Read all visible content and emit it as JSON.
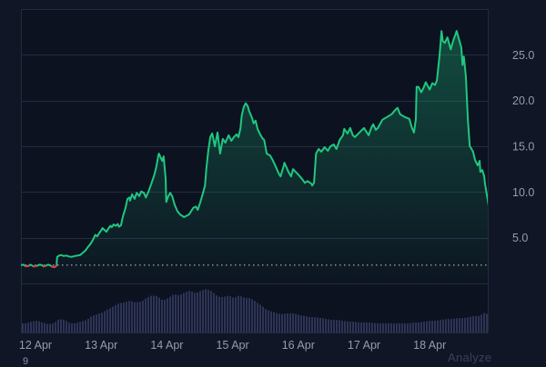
{
  "page": {
    "background": "#101626",
    "plot_background": "#0c1220",
    "grid_color": "#242b3e",
    "axis_text_color": "#939cb0"
  },
  "footer": {
    "analyze_label": "Analyze",
    "partial_glyph": "9"
  },
  "chart_data": {
    "type": "line",
    "title": "",
    "xlabel": "",
    "ylabel": "",
    "grid": true,
    "legend": false,
    "ylim": [
      0,
      30
    ],
    "xlim_days": [
      -0.22,
      6.9
    ],
    "y_ticks": [
      {
        "label": "25.0",
        "value": 25
      },
      {
        "label": "20.0",
        "value": 20
      },
      {
        "label": "15.0",
        "value": 15
      },
      {
        "label": "10.0",
        "value": 10
      },
      {
        "label": "5.0",
        "value": 5
      }
    ],
    "x_ticks": [
      {
        "label": "12 Apr",
        "day": 0
      },
      {
        "label": "13 Apr",
        "day": 1
      },
      {
        "label": "14 Apr",
        "day": 2
      },
      {
        "label": "15 Apr",
        "day": 3
      },
      {
        "label": "16 Apr",
        "day": 4
      },
      {
        "label": "17 Apr",
        "day": 5
      },
      {
        "label": "18 Apr",
        "day": 6
      }
    ],
    "baseline": {
      "value": 2.0,
      "style": "dotted",
      "color": "#e4eaf5"
    },
    "series": [
      {
        "name": "price",
        "type": "line",
        "color_above": "#20c780",
        "color_below": "#ea3943",
        "below_threshold": 1.96,
        "fill_gradient_top": "rgba(32,199,128,0.35)",
        "fill_gradient_bottom": "rgba(32,199,128,0.02)",
        "points": [
          [
            -0.22,
            2.0
          ],
          [
            -0.18,
            2.05
          ],
          [
            -0.15,
            1.88
          ],
          [
            -0.11,
            1.9
          ],
          [
            -0.08,
            2.05
          ],
          [
            -0.06,
            2.0
          ],
          [
            -0.03,
            1.86
          ],
          [
            0.01,
            1.9
          ],
          [
            0.06,
            2.05
          ],
          [
            0.1,
            2.0
          ],
          [
            0.12,
            1.87
          ],
          [
            0.15,
            1.9
          ],
          [
            0.19,
            2.05
          ],
          [
            0.22,
            2.0
          ],
          [
            0.25,
            1.85
          ],
          [
            0.28,
            1.78
          ],
          [
            0.3,
            1.82
          ],
          [
            0.32,
            1.95
          ],
          [
            0.33,
            2.9
          ],
          [
            0.36,
            3.05
          ],
          [
            0.39,
            3.1
          ],
          [
            0.43,
            3.0
          ],
          [
            0.47,
            3.05
          ],
          [
            0.51,
            2.95
          ],
          [
            0.55,
            2.9
          ],
          [
            0.6,
            3.0
          ],
          [
            0.64,
            3.05
          ],
          [
            0.68,
            3.1
          ],
          [
            0.72,
            3.35
          ],
          [
            0.76,
            3.6
          ],
          [
            0.8,
            4.0
          ],
          [
            0.84,
            4.35
          ],
          [
            0.87,
            4.7
          ],
          [
            0.91,
            5.3
          ],
          [
            0.94,
            5.15
          ],
          [
            0.97,
            5.5
          ],
          [
            1.0,
            5.8
          ],
          [
            1.02,
            6.05
          ],
          [
            1.05,
            5.85
          ],
          [
            1.08,
            5.65
          ],
          [
            1.11,
            6.0
          ],
          [
            1.14,
            6.3
          ],
          [
            1.16,
            6.15
          ],
          [
            1.19,
            6.45
          ],
          [
            1.22,
            6.3
          ],
          [
            1.25,
            6.5
          ],
          [
            1.27,
            6.2
          ],
          [
            1.3,
            6.35
          ],
          [
            1.33,
            7.3
          ],
          [
            1.37,
            8.25
          ],
          [
            1.4,
            9.25
          ],
          [
            1.43,
            9.4
          ],
          [
            1.44,
            9.05
          ],
          [
            1.47,
            9.75
          ],
          [
            1.51,
            9.25
          ],
          [
            1.54,
            9.9
          ],
          [
            1.58,
            9.55
          ],
          [
            1.61,
            10.05
          ],
          [
            1.65,
            9.9
          ],
          [
            1.68,
            9.4
          ],
          [
            1.72,
            10.05
          ],
          [
            1.77,
            11.05
          ],
          [
            1.81,
            11.9
          ],
          [
            1.84,
            12.75
          ],
          [
            1.87,
            14.0
          ],
          [
            1.88,
            14.2
          ],
          [
            1.91,
            13.7
          ],
          [
            1.93,
            13.4
          ],
          [
            1.95,
            13.9
          ],
          [
            1.98,
            11.5
          ],
          [
            1.99,
            8.9
          ],
          [
            2.02,
            9.5
          ],
          [
            2.05,
            9.9
          ],
          [
            2.08,
            9.55
          ],
          [
            2.12,
            8.55
          ],
          [
            2.16,
            7.9
          ],
          [
            2.2,
            7.55
          ],
          [
            2.26,
            7.25
          ],
          [
            2.3,
            7.4
          ],
          [
            2.34,
            7.55
          ],
          [
            2.4,
            8.25
          ],
          [
            2.44,
            8.4
          ],
          [
            2.47,
            8.05
          ],
          [
            2.51,
            8.9
          ],
          [
            2.55,
            9.9
          ],
          [
            2.58,
            10.7
          ],
          [
            2.6,
            12.5
          ],
          [
            2.63,
            14.5
          ],
          [
            2.66,
            16.0
          ],
          [
            2.69,
            16.4
          ],
          [
            2.73,
            15.0
          ],
          [
            2.77,
            16.5
          ],
          [
            2.81,
            14.2
          ],
          [
            2.85,
            15.8
          ],
          [
            2.89,
            15.4
          ],
          [
            2.94,
            16.2
          ],
          [
            2.98,
            15.6
          ],
          [
            3.02,
            16.0
          ],
          [
            3.06,
            16.3
          ],
          [
            3.09,
            16.0
          ],
          [
            3.12,
            17.0
          ],
          [
            3.14,
            18.4
          ],
          [
            3.17,
            19.3
          ],
          [
            3.2,
            19.7
          ],
          [
            3.23,
            19.4
          ],
          [
            3.25,
            18.9
          ],
          [
            3.3,
            18.0
          ],
          [
            3.32,
            17.5
          ],
          [
            3.35,
            17.8
          ],
          [
            3.38,
            16.9
          ],
          [
            3.42,
            16.3
          ],
          [
            3.45,
            15.9
          ],
          [
            3.48,
            15.7
          ],
          [
            3.52,
            14.2
          ],
          [
            3.57,
            14.0
          ],
          [
            3.61,
            13.5
          ],
          [
            3.66,
            12.7
          ],
          [
            3.71,
            11.9
          ],
          [
            3.73,
            11.7
          ],
          [
            3.78,
            12.9
          ],
          [
            3.79,
            13.2
          ],
          [
            3.85,
            12.2
          ],
          [
            3.89,
            11.7
          ],
          [
            3.92,
            12.5
          ],
          [
            3.96,
            12.2
          ],
          [
            4.0,
            11.9
          ],
          [
            4.06,
            11.4
          ],
          [
            4.1,
            11.0
          ],
          [
            4.14,
            11.2
          ],
          [
            4.2,
            10.9
          ],
          [
            4.21,
            10.7
          ],
          [
            4.24,
            11.0
          ],
          [
            4.27,
            14.2
          ],
          [
            4.31,
            14.7
          ],
          [
            4.35,
            14.4
          ],
          [
            4.4,
            14.9
          ],
          [
            4.45,
            14.5
          ],
          [
            4.49,
            15.0
          ],
          [
            4.54,
            15.2
          ],
          [
            4.58,
            14.7
          ],
          [
            4.63,
            15.7
          ],
          [
            4.68,
            16.2
          ],
          [
            4.7,
            16.9
          ],
          [
            4.75,
            16.4
          ],
          [
            4.79,
            17.0
          ],
          [
            4.83,
            16.2
          ],
          [
            4.86,
            16.0
          ],
          [
            4.93,
            16.5
          ],
          [
            5.0,
            17.0
          ],
          [
            5.07,
            16.2
          ],
          [
            5.11,
            17.0
          ],
          [
            5.14,
            17.4
          ],
          [
            5.18,
            16.8
          ],
          [
            5.21,
            17.0
          ],
          [
            5.25,
            17.5
          ],
          [
            5.28,
            17.9
          ],
          [
            5.35,
            18.2
          ],
          [
            5.42,
            18.5
          ],
          [
            5.48,
            19.0
          ],
          [
            5.51,
            19.2
          ],
          [
            5.55,
            18.5
          ],
          [
            5.62,
            18.2
          ],
          [
            5.69,
            18.0
          ],
          [
            5.73,
            17.0
          ],
          [
            5.76,
            16.5
          ],
          [
            5.79,
            18.0
          ],
          [
            5.8,
            21.5
          ],
          [
            5.83,
            21.5
          ],
          [
            5.87,
            20.9
          ],
          [
            5.9,
            21.3
          ],
          [
            5.94,
            22.0
          ],
          [
            5.97,
            21.6
          ],
          [
            6.0,
            21.2
          ],
          [
            6.04,
            21.9
          ],
          [
            6.08,
            21.7
          ],
          [
            6.11,
            22.2
          ],
          [
            6.15,
            24.9
          ],
          [
            6.18,
            27.6
          ],
          [
            6.2,
            26.5
          ],
          [
            6.23,
            26.3
          ],
          [
            6.27,
            26.9
          ],
          [
            6.32,
            25.6
          ],
          [
            6.36,
            26.6
          ],
          [
            6.39,
            27.2
          ],
          [
            6.41,
            27.6
          ],
          [
            6.45,
            26.6
          ],
          [
            6.48,
            25.8
          ],
          [
            6.5,
            23.9
          ],
          [
            6.52,
            24.8
          ],
          [
            6.55,
            22.7
          ],
          [
            6.58,
            18.0
          ],
          [
            6.61,
            15.0
          ],
          [
            6.62,
            14.9
          ],
          [
            6.66,
            14.4
          ],
          [
            6.69,
            13.5
          ],
          [
            6.73,
            12.9
          ],
          [
            6.76,
            13.4
          ],
          [
            6.77,
            12.2
          ],
          [
            6.8,
            12.4
          ],
          [
            6.83,
            11.7
          ],
          [
            6.84,
            11.0
          ],
          [
            6.87,
            9.7
          ],
          [
            6.88,
            9.3
          ],
          [
            6.9,
            8.3
          ]
        ]
      },
      {
        "name": "volume",
        "type": "bar",
        "color": "#2d3456",
        "points_norm": [
          [
            -0.22,
            0.21
          ],
          [
            -0.14,
            0.21
          ],
          [
            -0.06,
            0.25
          ],
          [
            0.03,
            0.27
          ],
          [
            0.11,
            0.23
          ],
          [
            0.19,
            0.19
          ],
          [
            0.28,
            0.21
          ],
          [
            0.36,
            0.31
          ],
          [
            0.44,
            0.29
          ],
          [
            0.53,
            0.21
          ],
          [
            0.61,
            0.21
          ],
          [
            0.69,
            0.25
          ],
          [
            0.78,
            0.29
          ],
          [
            0.86,
            0.38
          ],
          [
            0.94,
            0.42
          ],
          [
            1.02,
            0.46
          ],
          [
            1.11,
            0.54
          ],
          [
            1.19,
            0.6
          ],
          [
            1.27,
            0.67
          ],
          [
            1.36,
            0.69
          ],
          [
            1.44,
            0.73
          ],
          [
            1.52,
            0.69
          ],
          [
            1.61,
            0.71
          ],
          [
            1.69,
            0.79
          ],
          [
            1.77,
            0.85
          ],
          [
            1.86,
            0.83
          ],
          [
            1.94,
            0.73
          ],
          [
            2.02,
            0.79
          ],
          [
            2.11,
            0.88
          ],
          [
            2.19,
            0.85
          ],
          [
            2.27,
            0.92
          ],
          [
            2.35,
            0.96
          ],
          [
            2.44,
            0.9
          ],
          [
            2.52,
            0.96
          ],
          [
            2.6,
            1.0
          ],
          [
            2.69,
            0.94
          ],
          [
            2.77,
            0.83
          ],
          [
            2.85,
            0.81
          ],
          [
            2.94,
            0.85
          ],
          [
            3.02,
            0.79
          ],
          [
            3.1,
            0.85
          ],
          [
            3.19,
            0.79
          ],
          [
            3.27,
            0.79
          ],
          [
            3.35,
            0.71
          ],
          [
            3.43,
            0.63
          ],
          [
            3.52,
            0.52
          ],
          [
            3.6,
            0.48
          ],
          [
            3.68,
            0.44
          ],
          [
            3.77,
            0.42
          ],
          [
            3.85,
            0.44
          ],
          [
            3.93,
            0.44
          ],
          [
            4.02,
            0.4
          ],
          [
            4.1,
            0.38
          ],
          [
            4.18,
            0.35
          ],
          [
            4.27,
            0.35
          ],
          [
            4.35,
            0.33
          ],
          [
            4.43,
            0.31
          ],
          [
            4.51,
            0.29
          ],
          [
            4.6,
            0.29
          ],
          [
            4.68,
            0.27
          ],
          [
            4.76,
            0.25
          ],
          [
            4.85,
            0.25
          ],
          [
            4.93,
            0.23
          ],
          [
            5.01,
            0.23
          ],
          [
            5.1,
            0.23
          ],
          [
            5.18,
            0.21
          ],
          [
            5.26,
            0.21
          ],
          [
            5.35,
            0.21
          ],
          [
            5.43,
            0.21
          ],
          [
            5.51,
            0.21
          ],
          [
            5.6,
            0.21
          ],
          [
            5.68,
            0.21
          ],
          [
            5.76,
            0.23
          ],
          [
            5.84,
            0.23
          ],
          [
            5.93,
            0.25
          ],
          [
            6.01,
            0.27
          ],
          [
            6.09,
            0.27
          ],
          [
            6.18,
            0.29
          ],
          [
            6.26,
            0.31
          ],
          [
            6.34,
            0.31
          ],
          [
            6.43,
            0.33
          ],
          [
            6.51,
            0.33
          ],
          [
            6.59,
            0.35
          ],
          [
            6.68,
            0.38
          ],
          [
            6.76,
            0.38
          ],
          [
            6.84,
            0.46
          ],
          [
            6.88,
            0.42
          ]
        ]
      }
    ]
  }
}
